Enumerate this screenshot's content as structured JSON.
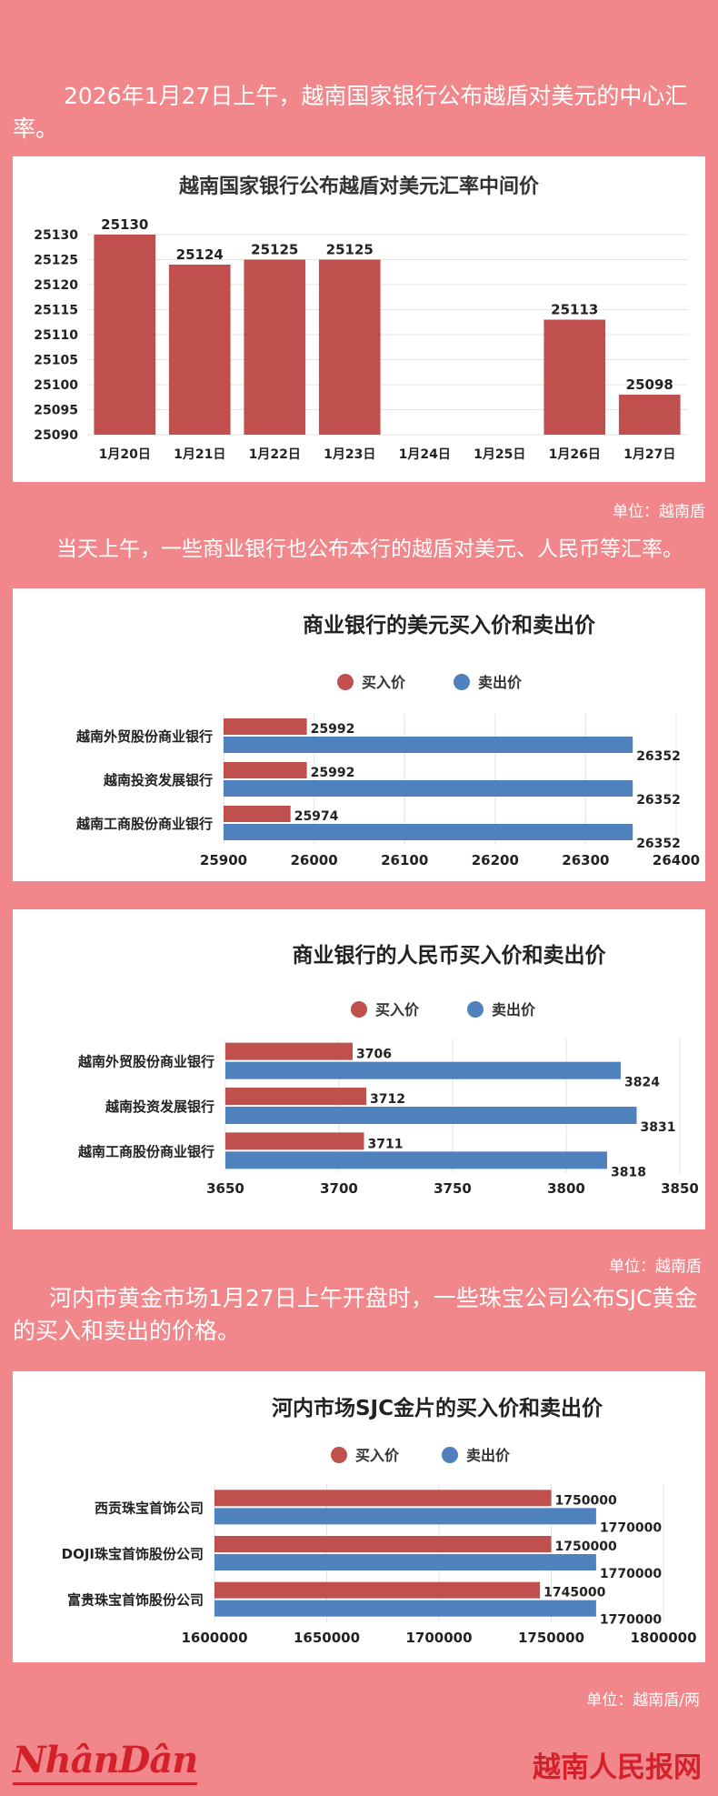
{
  "intro": {
    "text1": "2026年1月27日上午，越南国家银行公布越盾对美元的中心汇率。",
    "text2": "当天上午，一些商业银行也公布本行的越盾对美元、人民币等汇率。",
    "text3": "河内市黄金市场1月27日上午开盘时，一些珠宝公司公布SJC黄金的买入和卖出的价格。"
  },
  "units": {
    "u1": "单位：越南盾",
    "u2": "单位：越南盾",
    "u3": "单位：越南盾/两"
  },
  "footer": {
    "logo": "NhânDân",
    "site": "越南人民报网"
  },
  "colors": {
    "buy": "#c0504d",
    "sell": "#4f81bd",
    "background": "#f2878b",
    "brand": "#d4202a"
  },
  "chart_data": [
    {
      "type": "bar",
      "title": "越南国家银行公布越盾对美元汇率中间价",
      "categories": [
        "1月20日",
        "1月21日",
        "1月22日",
        "1月23日",
        "1月24日",
        "1月25日",
        "1月26日",
        "1月27日"
      ],
      "values": [
        25130,
        25124,
        25125,
        25125,
        null,
        null,
        25113,
        25098
      ],
      "ylim": [
        25090,
        25130
      ],
      "yticks": [
        25130,
        25125,
        25120,
        25115,
        25110,
        25105,
        25100,
        25095,
        25090
      ],
      "grid": true
    },
    {
      "type": "bar",
      "orientation": "horizontal",
      "title": "商业银行的美元买入价和卖出价",
      "categories": [
        "越南外贸股份商业银行",
        "越南投资发展银行",
        "越南工商股份商业银行"
      ],
      "series": [
        {
          "name": "买入价",
          "values": [
            25992,
            25992,
            25974
          ]
        },
        {
          "name": "卖出价",
          "values": [
            26352,
            26352,
            26352
          ]
        }
      ],
      "xlim": [
        25900,
        26400
      ],
      "xticks": [
        25900,
        26000,
        26100,
        26200,
        26300,
        26400
      ],
      "legend": "top"
    },
    {
      "type": "bar",
      "orientation": "horizontal",
      "title": "商业银行的人民币买入价和卖出价",
      "categories": [
        "越南外贸股份商业银行",
        "越南投资发展银行",
        "越南工商股份商业银行"
      ],
      "series": [
        {
          "name": "买入价",
          "values": [
            3706,
            3712,
            3711
          ]
        },
        {
          "name": "卖出价",
          "values": [
            3824,
            3831,
            3818
          ]
        }
      ],
      "xlim": [
        3650,
        3850
      ],
      "xticks": [
        3650,
        3700,
        3750,
        3800,
        3850
      ],
      "legend": "top"
    },
    {
      "type": "bar",
      "orientation": "horizontal",
      "title": "河内市场SJC金片的买入价和卖出价",
      "categories": [
        "西贡珠宝首饰公司",
        "DOJI珠宝首饰股份公司",
        "富贵珠宝首饰股份公司"
      ],
      "series": [
        {
          "name": "买入价",
          "values": [
            1750000,
            1750000,
            1745000
          ]
        },
        {
          "name": "卖出价",
          "values": [
            1770000,
            1770000,
            1770000
          ]
        }
      ],
      "xlim": [
        1600000,
        1800000
      ],
      "xticks": [
        1600000,
        1650000,
        1700000,
        1750000,
        1800000
      ],
      "legend": "top"
    }
  ]
}
